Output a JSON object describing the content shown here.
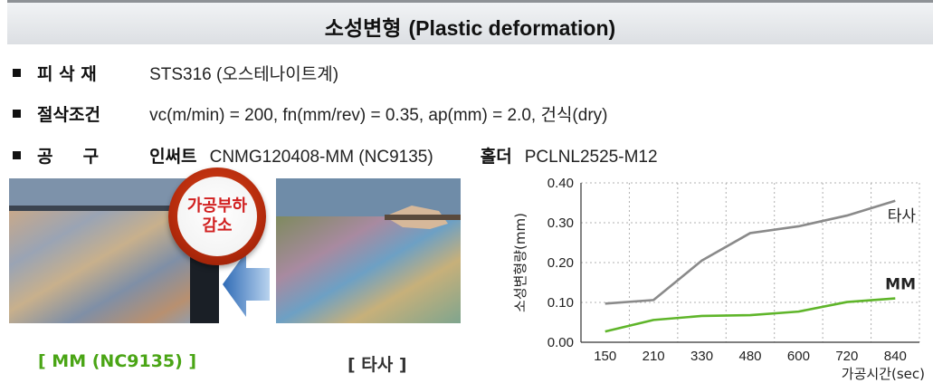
{
  "header": {
    "title_ko": "소성변형",
    "title_en": "(Plastic deformation)"
  },
  "specs": [
    {
      "label": "피 삭 재",
      "value": "STS316 (오스테나이트계)"
    },
    {
      "label": "절삭조건",
      "value": "vc(m/min) = 200, fn(mm/rev) = 0.35, ap(mm) = 2.0, 건식(dry)"
    },
    {
      "label": "공     구",
      "insert_label": "인써트",
      "insert_value": "CNMG120408-MM (NC9135)",
      "holder_label": "홀더",
      "holder_value": "PCLNL2525-M12"
    }
  ],
  "badge": {
    "line1": "가공부하",
    "line2": "감소"
  },
  "captions": {
    "mm": "[ MM (NC9135) ]",
    "other": "[ 타사 ]"
  },
  "colors": {
    "mm": "#5fb52a",
    "other": "#8a8a8a",
    "badge": "#c8341a",
    "arrow": "#3f7fc4"
  },
  "chart_data": {
    "type": "line",
    "categories": [
      "150",
      "210",
      "330",
      "480",
      "600",
      "720",
      "840"
    ],
    "series": [
      {
        "name": "타사",
        "values": [
          0.097,
          0.106,
          0.205,
          0.274,
          0.291,
          0.318,
          0.355
        ]
      },
      {
        "name": "MM",
        "values": [
          0.027,
          0.056,
          0.066,
          0.068,
          0.077,
          0.101,
          0.11
        ]
      }
    ],
    "yticks": [
      "0.00",
      "0.10",
      "0.20",
      "0.30",
      "0.40"
    ],
    "ylim": [
      0,
      0.4
    ],
    "ylabel": "소성변형량(mm)",
    "xlabel": "가공시간(sec)",
    "grid": true
  }
}
